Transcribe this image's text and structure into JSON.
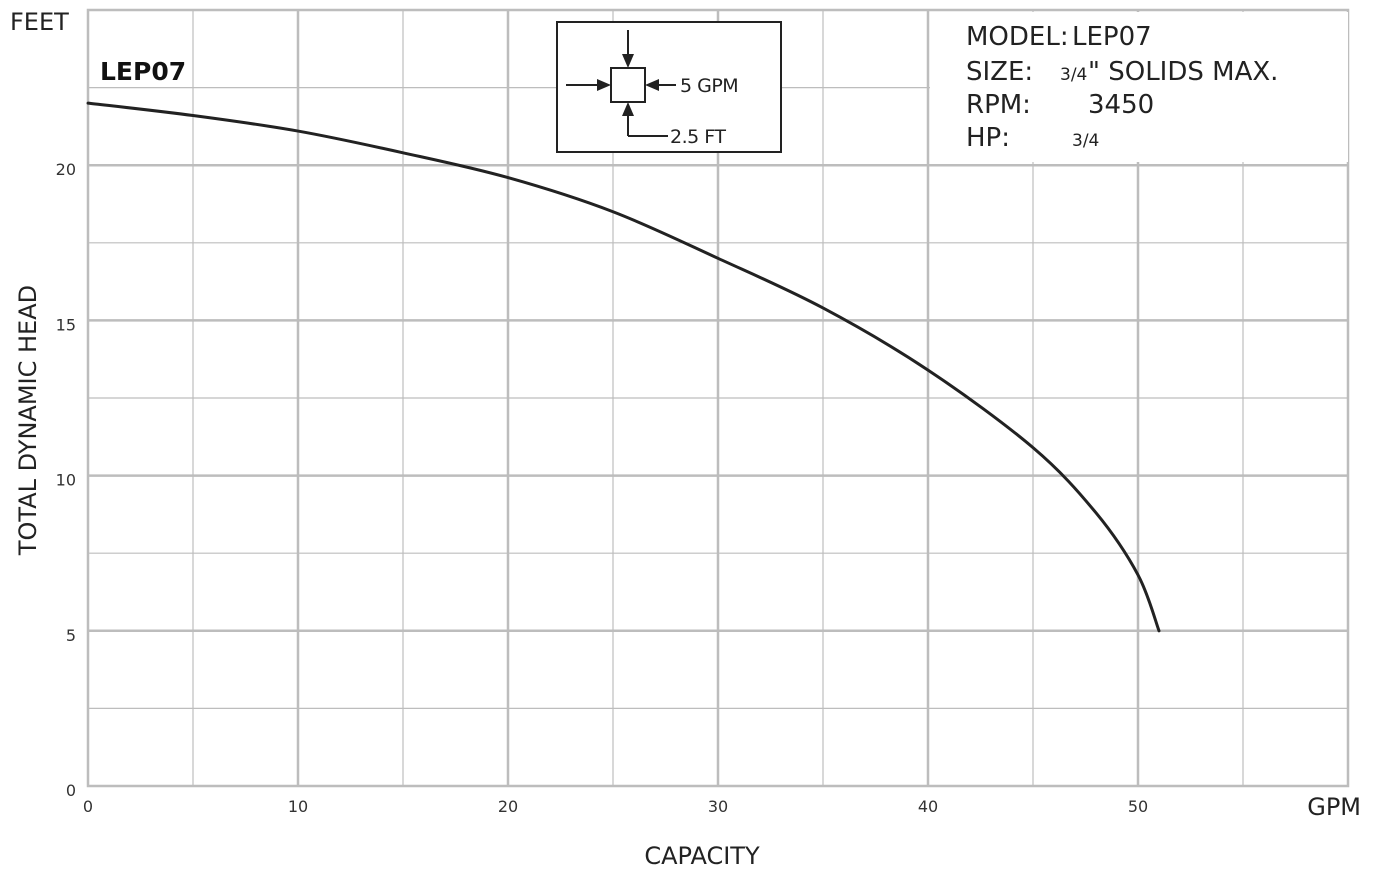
{
  "chart_data": {
    "type": "line",
    "title": "LEP07",
    "xlabel": "CAPACITY",
    "x_unit": "GPM",
    "ylabel": "TOTAL DYNAMIC HEAD",
    "y_unit": "FEET",
    "xlim": [
      0,
      60
    ],
    "ylim": [
      0,
      25
    ],
    "x_ticks": [
      0,
      10,
      20,
      30,
      40,
      50
    ],
    "y_ticks": [
      0,
      5,
      10,
      15,
      20
    ],
    "x_tick_labels": [
      "0",
      "10",
      "20",
      "30",
      "40",
      "50"
    ],
    "y_tick_labels": [
      "0",
      "5",
      "10",
      "15",
      "20"
    ],
    "grid": true,
    "series": [
      {
        "x": [
          0,
          5,
          10,
          15,
          20,
          25,
          30,
          35,
          40,
          45,
          48,
          50,
          51
        ],
        "y": [
          22.0,
          21.6,
          21.1,
          20.4,
          19.6,
          18.5,
          17.0,
          15.4,
          13.4,
          10.9,
          8.8,
          6.8,
          5.0
        ]
      }
    ],
    "legend_box": {
      "flow_label": "5 GPM",
      "head_label": "2.5 FT"
    },
    "model_info": {
      "model_key": "MODEL:",
      "model_value": "LEP07",
      "size_key": "SIZE:",
      "size_frac": "3/4",
      "size_value": "\" SOLIDS MAX.",
      "rpm_key": "RPM:",
      "rpm_value": "3450",
      "hp_key": "HP:",
      "hp_frac": "3/4"
    },
    "colors": {
      "grid": "#bdbdbd",
      "curve": "#222222"
    }
  }
}
